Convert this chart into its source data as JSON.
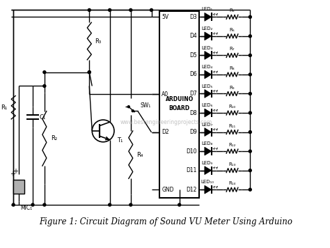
{
  "title": "Figure 1: Circuit Diagram of Sound VU Meter Using Arduino",
  "bg_color": "#ffffff",
  "line_color": "#000000",
  "fig_width": 4.74,
  "fig_height": 3.56,
  "dpi": 100,
  "watermark": "www.bestengineeringprojects.com",
  "arduino_label1": "ARDUINO",
  "arduino_label2": "BOARD",
  "left_labels": [
    "5V",
    "A0",
    "ARDUINO",
    "BOARD",
    "D2",
    "GND"
  ],
  "right_pin_labels": [
    "D3",
    "D4",
    "D5",
    "D6",
    "D7",
    "D8",
    "D9",
    "D10",
    "D11",
    "D12"
  ],
  "led_labels": [
    "LED₁",
    "LED₂",
    "LED₃",
    "LED₄",
    "LED₅",
    "LED₆",
    "LED₇",
    "LED₈",
    "LED₉",
    "LED₁₀"
  ],
  "res_labels": [
    "R₅",
    "R₆",
    "R₇",
    "R₈",
    "R₉",
    "R₁₀",
    "R₁₁",
    "R₁₂",
    "R₁₃",
    "R₁₄"
  ],
  "R1": "R₁",
  "R2": "R₂",
  "R3": "R₃",
  "R4": "R₄",
  "C1": "C₁",
  "T1": "T₁",
  "MIC1": "MIC₁",
  "SW1": "SW₁"
}
